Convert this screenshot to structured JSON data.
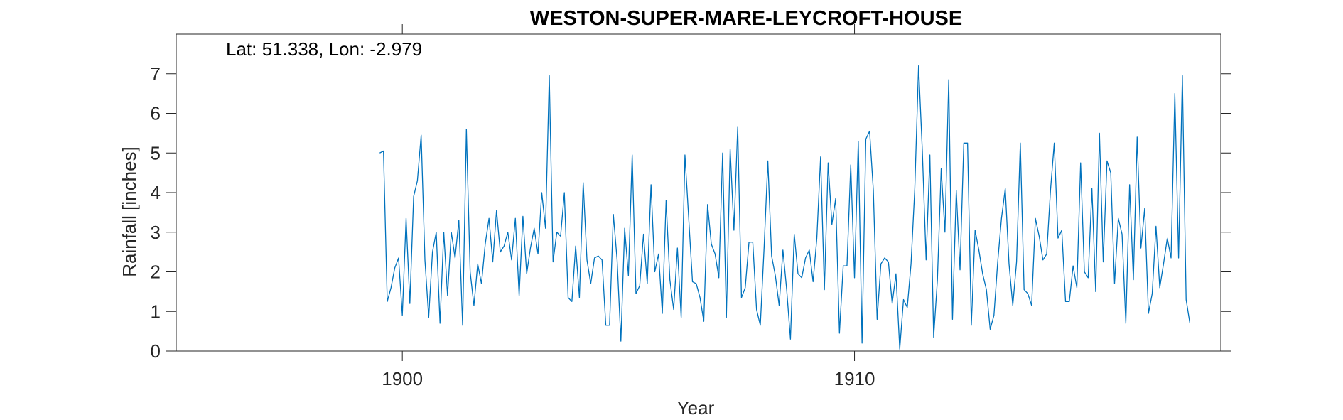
{
  "chart_data": {
    "type": "line",
    "title": "WESTON-SUPER-MARE-LEYCROFT-HOUSE",
    "annotation": "Lat: 51.338, Lon: -2.979",
    "xlabel": "Year",
    "ylabel": "Rainfall [inches]",
    "xlim": [
      1895,
      1918.1
    ],
    "ylim": [
      0,
      8
    ],
    "xticks": [
      1900,
      1910
    ],
    "xtick_labels": [
      "1900",
      "1910"
    ],
    "yticks": [
      0,
      1,
      2,
      3,
      4,
      5,
      6,
      7
    ],
    "ytick_labels": [
      "0",
      "1",
      "2",
      "3",
      "4",
      "5",
      "6",
      "7"
    ],
    "grid": false,
    "line_color": "#0072BD",
    "series": [
      {
        "x_start": 1899.5,
        "x_step": 0.08333333,
        "values": [
          5.0,
          5.05,
          1.25,
          1.6,
          2.1,
          2.35,
          0.9,
          3.35,
          1.2,
          3.9,
          4.3,
          5.45,
          2.3,
          0.85,
          2.5,
          3.0,
          0.7,
          3.0,
          1.4,
          3.0,
          2.35,
          3.3,
          0.65,
          5.6,
          2.0,
          1.15,
          2.2,
          1.7,
          2.7,
          3.35,
          2.25,
          3.55,
          2.5,
          2.65,
          3.0,
          2.3,
          3.35,
          1.4,
          3.4,
          1.95,
          2.6,
          3.1,
          2.45,
          4.0,
          3.1,
          6.95,
          2.25,
          3.0,
          2.9,
          4.0,
          1.35,
          1.25,
          2.65,
          1.35,
          4.25,
          2.3,
          1.7,
          2.35,
          2.4,
          2.3,
          0.65,
          0.65,
          3.45,
          2.3,
          0.25,
          3.1,
          1.9,
          4.95,
          1.45,
          1.65,
          2.95,
          1.7,
          4.2,
          2.0,
          2.45,
          0.95,
          3.8,
          1.8,
          1.05,
          2.6,
          0.85,
          4.95,
          3.35,
          1.75,
          1.7,
          1.35,
          0.75,
          3.7,
          2.7,
          2.45,
          1.85,
          5.0,
          0.85,
          5.1,
          3.05,
          5.65,
          1.35,
          1.6,
          2.75,
          2.75,
          1.05,
          0.65,
          2.6,
          4.8,
          2.4,
          1.9,
          1.15,
          2.55,
          1.55,
          0.3,
          2.95,
          1.95,
          1.85,
          2.35,
          2.55,
          1.75,
          2.85,
          4.9,
          1.55,
          4.75,
          3.2,
          3.85,
          0.45,
          2.15,
          2.15,
          4.7,
          1.85,
          5.3,
          0.2,
          5.35,
          5.55,
          4.05,
          0.8,
          2.2,
          2.35,
          2.25,
          1.2,
          1.95,
          0.05,
          1.3,
          1.1,
          2.2,
          4.1,
          7.2,
          5.05,
          2.3,
          4.95,
          0.35,
          1.8,
          4.6,
          3.0,
          6.85,
          0.8,
          4.05,
          2.05,
          5.25,
          5.25,
          0.65,
          3.05,
          2.55,
          1.95,
          1.55,
          0.55,
          0.9,
          2.25,
          3.35,
          4.1,
          2.2,
          1.15,
          2.25,
          5.25,
          1.55,
          1.45,
          1.15,
          3.35,
          2.9,
          2.3,
          2.45,
          4.05,
          5.25,
          2.85,
          3.05,
          1.25,
          1.25,
          2.15,
          1.6,
          4.75,
          2.0,
          1.85,
          4.1,
          1.5,
          5.5,
          2.25,
          4.8,
          4.5,
          1.7,
          3.35,
          2.95,
          0.7,
          4.2,
          1.8,
          5.4,
          2.6,
          3.6,
          0.95,
          1.45,
          3.15,
          1.6,
          2.2,
          2.85,
          2.35,
          6.5,
          2.35,
          6.95,
          1.3,
          0.7
        ]
      }
    ]
  }
}
